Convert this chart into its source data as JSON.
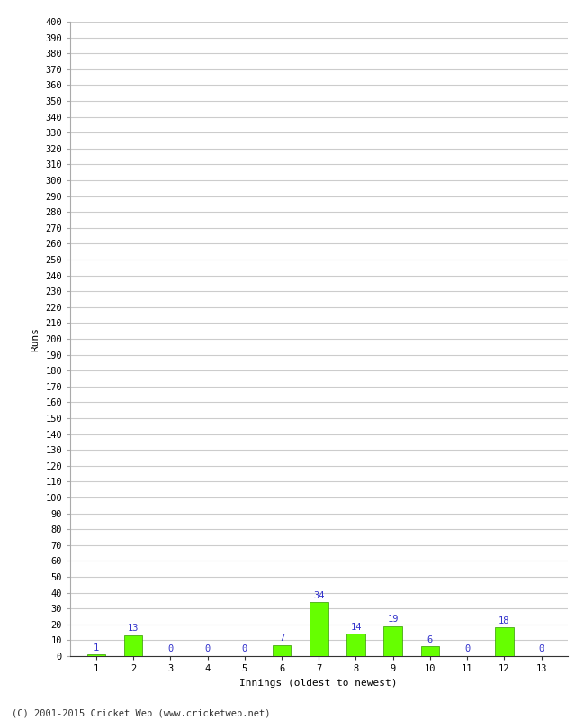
{
  "xlabel": "Innings (oldest to newest)",
  "ylabel": "Runs",
  "categories": [
    1,
    2,
    3,
    4,
    5,
    6,
    7,
    8,
    9,
    10,
    11,
    12,
    13
  ],
  "values": [
    1,
    13,
    0,
    0,
    0,
    7,
    34,
    14,
    19,
    6,
    0,
    18,
    0
  ],
  "bar_color": "#66ff00",
  "bar_edge_color": "#339900",
  "label_color": "#3333cc",
  "ylim": [
    0,
    400
  ],
  "ytick_step": 10,
  "background_color": "#ffffff",
  "grid_color": "#cccccc",
  "footer": "(C) 2001-2015 Cricket Web (www.cricketweb.net)",
  "label_fontsize": 7.5,
  "axis_tick_fontsize": 7.5,
  "axis_label_fontsize": 8,
  "ylabel_fontsize": 8,
  "footer_fontsize": 7.5
}
